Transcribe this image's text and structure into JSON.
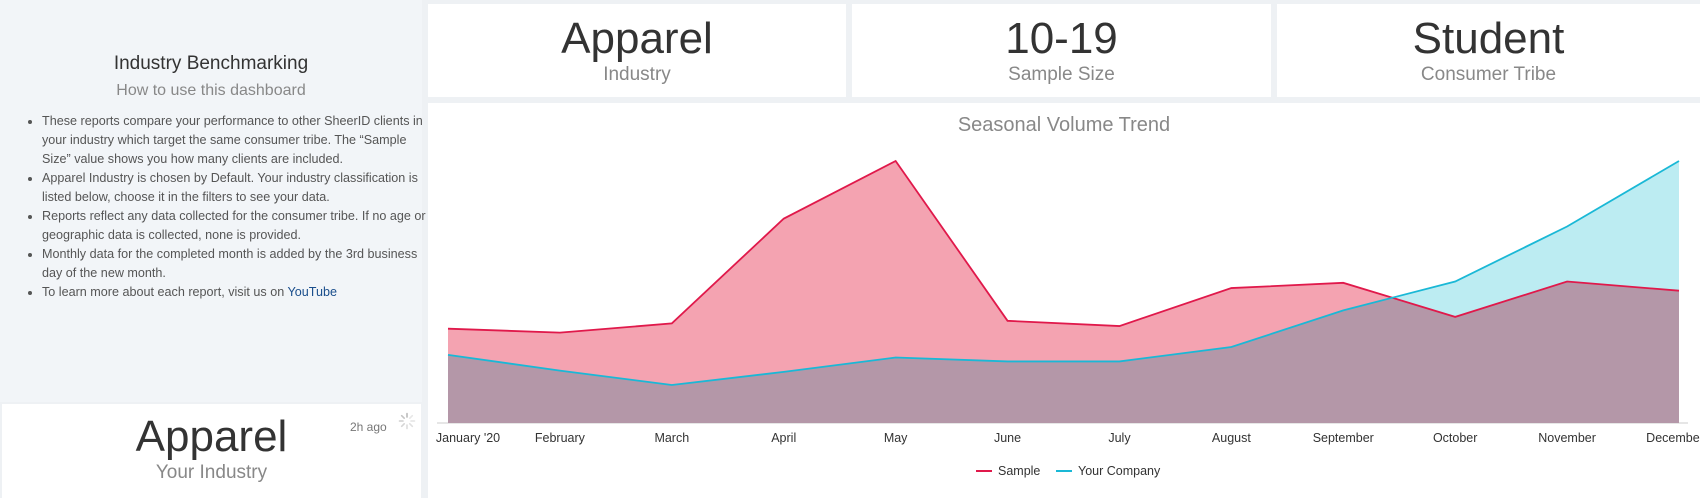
{
  "intro": {
    "title": "Industry Benchmarking",
    "subtitle": "How to use this dashboard",
    "bullets": [
      "These reports compare your performance to other SheerID clients in your industry which target the same consumer tribe. The “Sample Size” value shows you how many clients are included.",
      "Apparel Industry is chosen by Default. Your industry classification is listed below, choose it in the filters to see your data.",
      "Reports reflect any data collected for the consumer tribe. If no age or geographic data is collected, none is provided.",
      "Monthly data for the completed month is added by the 3rd business day of the new month."
    ],
    "last_bullet_prefix": "To learn more about each report, visit us on ",
    "youtube_link": "YouTube"
  },
  "kpis": [
    {
      "value": "Apparel",
      "label": "Industry"
    },
    {
      "value": "10-19",
      "label": "Sample Size"
    },
    {
      "value": "Student",
      "label": "Consumer Tribe"
    }
  ],
  "your_industry": {
    "value": "Apparel",
    "label": "Your Industry",
    "updated": "2h ago"
  },
  "chart_data": {
    "type": "area",
    "title": "Seasonal Volume Trend",
    "categories": [
      "January '20",
      "February",
      "March",
      "April",
      "May",
      "June",
      "July",
      "August",
      "September",
      "October",
      "November",
      "December"
    ],
    "series": [
      {
        "name": "Sample",
        "color": "#e0194b",
        "fill": "#f4a3b1",
        "values": [
          36,
          34.5,
          38,
          78,
          100,
          39,
          37,
          51.5,
          53.5,
          40.5,
          54,
          50.5
        ]
      },
      {
        "name": "Your Company",
        "color": "#1ab8d6",
        "fill": "#8fe0ea",
        "values": [
          26,
          20,
          14.5,
          19.5,
          25,
          23.5,
          23.5,
          29,
          43,
          54,
          75,
          100
        ]
      }
    ],
    "ylim": [
      0,
      100
    ],
    "legend": "bottom-center"
  }
}
